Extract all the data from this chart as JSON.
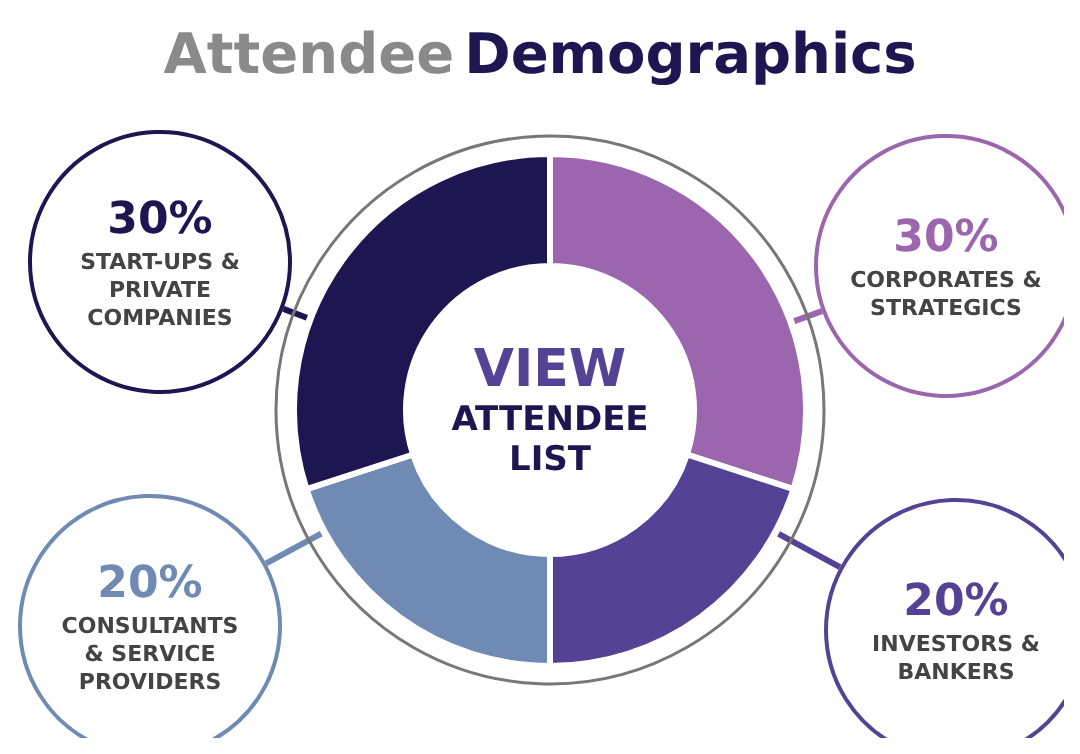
{
  "chart_data": {
    "type": "donut",
    "title": "Attendee Demographics",
    "categories": [
      "CORPORATES & STRATEGICS",
      "INVESTORS & BANKERS",
      "CONSULTANTS & SERVICE PROVIDERS",
      "START-UPS & PRIVATE COMPANIES"
    ],
    "values": [
      30,
      20,
      20,
      30
    ],
    "colors": [
      "#9b66ad",
      "#544394",
      "#6f8bb3",
      "#1e1650"
    ],
    "value_labels": [
      "30%",
      "20%",
      "20%",
      "30%"
    ],
    "annotations": [
      "VIEW ATTENDEE LIST"
    ]
  }
}
